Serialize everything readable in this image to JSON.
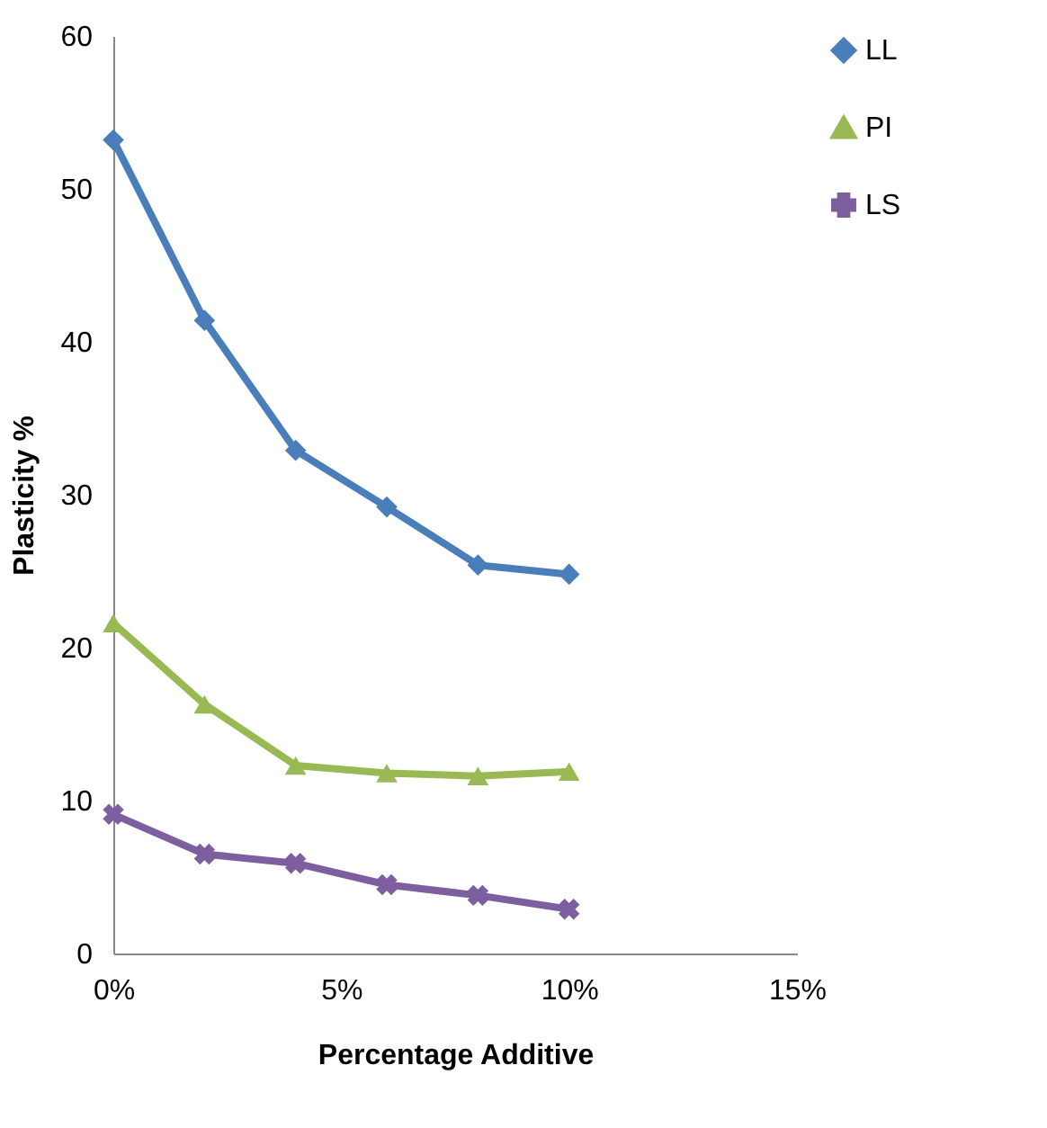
{
  "chart_data": {
    "type": "line",
    "xlabel": "Percentage Additive",
    "ylabel": "Plasticity %",
    "x": [
      0,
      2,
      4,
      6,
      8,
      10
    ],
    "series": [
      {
        "name": "LL",
        "color": "#4a7ebb",
        "marker": "diamond",
        "values": [
          53.2,
          41.4,
          32.9,
          29.2,
          25.4,
          24.8
        ]
      },
      {
        "name": "PI",
        "color": "#98b954",
        "marker": "triangle",
        "values": [
          21.6,
          16.3,
          12.3,
          11.8,
          11.6,
          11.9
        ]
      },
      {
        "name": "LS",
        "color": "#7d5fa0",
        "marker": "cross",
        "values": [
          9.1,
          6.5,
          5.9,
          4.5,
          3.8,
          2.9
        ]
      }
    ],
    "xlim": [
      0,
      15
    ],
    "xticks": [
      {
        "value": 0,
        "label": "0%"
      },
      {
        "value": 5,
        "label": "5%"
      },
      {
        "value": 10,
        "label": "10%"
      },
      {
        "value": 15,
        "label": "15%"
      }
    ],
    "ylim": [
      0,
      60
    ],
    "yticks": [
      0,
      10,
      20,
      30,
      40,
      50,
      60
    ],
    "grid": false,
    "legend": "right",
    "line_style": "solid"
  }
}
